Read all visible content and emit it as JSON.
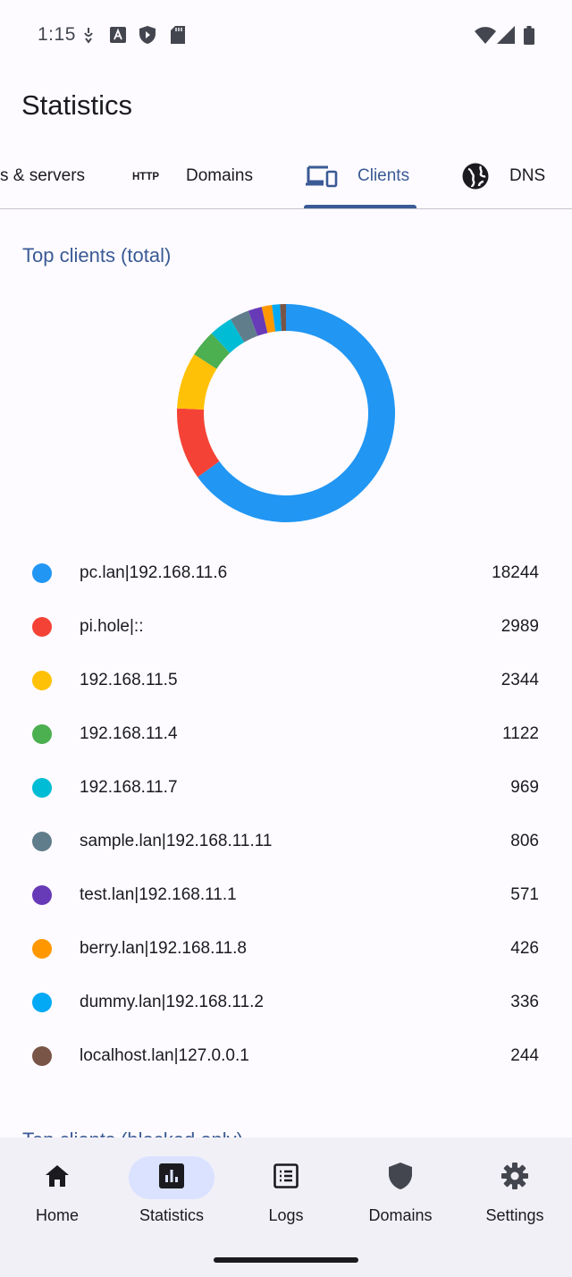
{
  "status_bar": {
    "time": "1:15",
    "icons": [
      "notification-icon",
      "font-icon",
      "shield-icon",
      "sd-card-icon",
      "wifi-icon",
      "signal-icon",
      "battery-icon"
    ]
  },
  "app_bar": {
    "title": "Statistics"
  },
  "tabs": [
    {
      "label": "s & servers",
      "icon": "dns-icon",
      "active": false
    },
    {
      "label": "Domains",
      "icon": "http-icon",
      "icon_text": "HTTP",
      "active": false
    },
    {
      "label": "Clients",
      "icon": "devices-icon",
      "active": true
    },
    {
      "label": "DNS",
      "icon": "globe-icon",
      "active": false
    }
  ],
  "top_clients": {
    "title": "Top clients (total)",
    "clients": [
      {
        "name": "pc.lan|192.168.11.6",
        "count": "18244",
        "color": "#2196f3"
      },
      {
        "name": "pi.hole|::",
        "count": "2989",
        "color": "#f44336"
      },
      {
        "name": "192.168.11.5",
        "count": "2344",
        "color": "#ffc107"
      },
      {
        "name": "192.168.11.4",
        "count": "1122",
        "color": "#4caf50"
      },
      {
        "name": "192.168.11.7",
        "count": "969",
        "color": "#00bcd4"
      },
      {
        "name": "sample.lan|192.168.11.11",
        "count": "806",
        "color": "#607d8b"
      },
      {
        "name": "test.lan|192.168.11.1",
        "count": "571",
        "color": "#673ab7"
      },
      {
        "name": "berry.lan|192.168.11.8",
        "count": "426",
        "color": "#ff9800"
      },
      {
        "name": "dummy.lan|192.168.11.2",
        "count": "336",
        "color": "#03a9f4"
      },
      {
        "name": "localhost.lan|127.0.0.1",
        "count": "244",
        "color": "#795548"
      }
    ]
  },
  "next_section_title": "Top clients (blocked only)",
  "bottom_nav": [
    {
      "label": "Home",
      "icon": "home-icon",
      "active": false
    },
    {
      "label": "Statistics",
      "icon": "bar-chart-icon",
      "active": true
    },
    {
      "label": "Logs",
      "icon": "list-icon",
      "active": false
    },
    {
      "label": "Domains",
      "icon": "shield-icon",
      "active": false
    },
    {
      "label": "Settings",
      "icon": "gear-icon",
      "active": false
    }
  ],
  "colors": {
    "accent": "#3a5a95",
    "active_pill": "#dae2ff",
    "nav_background": "#f1f0f7"
  }
}
